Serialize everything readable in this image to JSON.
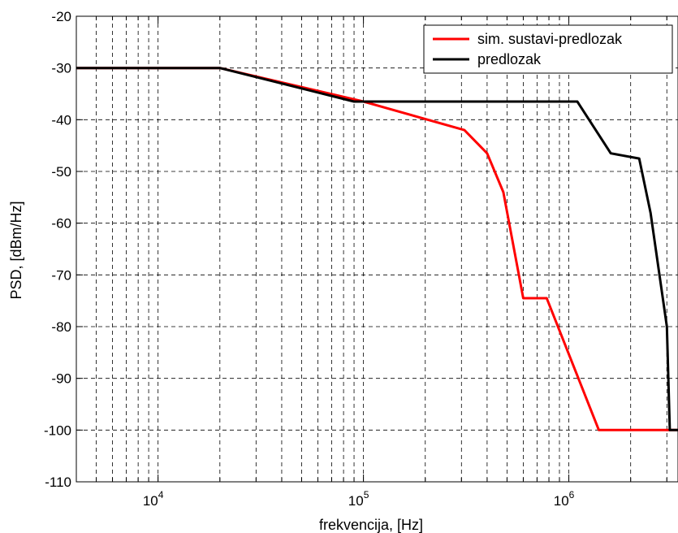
{
  "chart_data": {
    "type": "line",
    "title": "",
    "xlabel": "frekvencija, [Hz]",
    "ylabel": "PSD, [dBm/Hz]",
    "xscale": "log",
    "xlim": [
      4000,
      3400000
    ],
    "ylim": [
      -110,
      -20
    ],
    "grid": true,
    "legend_position": "top-right",
    "y_ticks": [
      -20,
      -30,
      -40,
      -50,
      -60,
      -70,
      -80,
      -90,
      -100,
      -110
    ],
    "x_ticks": [
      {
        "value": 10000,
        "base": "10",
        "exp": "4"
      },
      {
        "value": 100000,
        "base": "10",
        "exp": "5"
      },
      {
        "value": 1000000,
        "base": "10",
        "exp": "6"
      }
    ],
    "series": [
      {
        "name": "sim. sustavi-predlozak",
        "color": "#ff0000",
        "x": [
          4000,
          20000,
          100000,
          310000,
          400000,
          480000,
          600000,
          780000,
          1400000,
          3400000
        ],
        "y": [
          -30,
          -30,
          -36.5,
          -42,
          -46.5,
          -54,
          -74.5,
          -74.5,
          -100,
          -100
        ]
      },
      {
        "name": "predlozak",
        "color": "#000000",
        "x": [
          4000,
          20000,
          90000,
          1100000,
          1600000,
          2200000,
          2500000,
          3000000,
          3100000,
          3400000
        ],
        "y": [
          -30,
          -30,
          -36.5,
          -36.5,
          -46.5,
          -47.5,
          -58,
          -80,
          -100,
          -100
        ]
      }
    ]
  }
}
